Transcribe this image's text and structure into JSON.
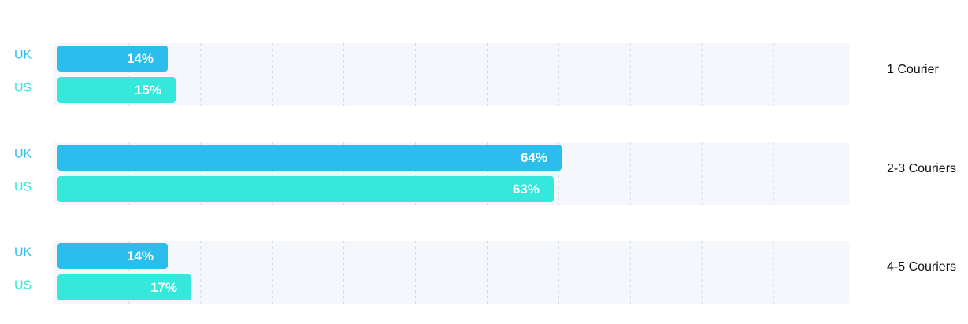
{
  "chart_data": {
    "type": "bar",
    "orientation": "horizontal",
    "categories": [
      "1 Courier",
      "2-3 Couriers",
      "4-5 Couriers"
    ],
    "series": [
      {
        "name": "UK",
        "color": "#2bbdec",
        "values": [
          14,
          64,
          14
        ],
        "value_labels": [
          "14%",
          "64%",
          "14%"
        ]
      },
      {
        "name": "US",
        "color": "#34e8dc",
        "values": [
          15,
          63,
          17
        ],
        "value_labels": [
          "15%",
          "63%",
          "17%"
        ]
      }
    ],
    "xlim": [
      0,
      100
    ]
  }
}
